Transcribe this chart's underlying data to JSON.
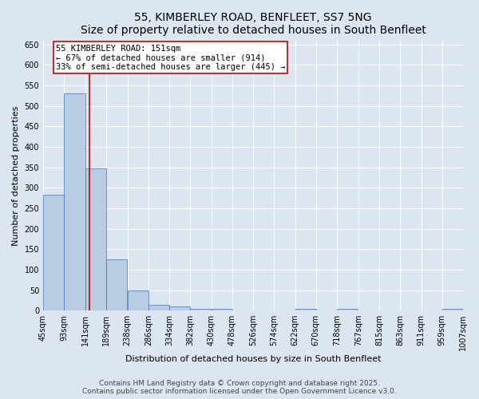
{
  "title_line1": "55, KIMBERLEY ROAD, BENFLEET, SS7 5NG",
  "title_line2": "Size of property relative to detached houses in South Benfleet",
  "xlabel": "Distribution of detached houses by size in South Benfleet",
  "ylabel": "Number of detached properties",
  "bin_labels": [
    "45sqm",
    "93sqm",
    "141sqm",
    "189sqm",
    "238sqm",
    "286sqm",
    "334sqm",
    "382sqm",
    "430sqm",
    "478sqm",
    "526sqm",
    "574sqm",
    "622sqm",
    "670sqm",
    "718sqm",
    "767sqm",
    "815sqm",
    "863sqm",
    "911sqm",
    "959sqm",
    "1007sqm"
  ],
  "bin_edges": [
    45,
    93,
    141,
    189,
    238,
    286,
    334,
    382,
    430,
    478,
    526,
    574,
    622,
    670,
    718,
    767,
    815,
    863,
    911,
    959,
    1007
  ],
  "bar_heights": [
    283,
    530,
    348,
    125,
    50,
    15,
    10,
    5,
    5,
    0,
    0,
    0,
    5,
    0,
    5,
    0,
    0,
    0,
    0,
    5
  ],
  "bar_color": "#b8cce4",
  "bar_edge_color": "#4472c4",
  "background_color": "#dce6f1",
  "grid_color": "#ffffff",
  "red_line_x": 151,
  "annotation_title": "55 KIMBERLEY ROAD: 151sqm",
  "annotation_line1": "← 67% of detached houses are smaller (914)",
  "annotation_line2": "33% of semi-detached houses are larger (445) →",
  "annotation_box_color": "#ffffff",
  "annotation_border_color": "#cc0000",
  "red_line_color": "#cc0000",
  "ylim": [
    0,
    660
  ],
  "yticks": [
    0,
    50,
    100,
    150,
    200,
    250,
    300,
    350,
    400,
    450,
    500,
    550,
    600,
    650
  ],
  "footer_line1": "Contains HM Land Registry data © Crown copyright and database right 2025.",
  "footer_line2": "Contains public sector information licensed under the Open Government Licence v3.0.",
  "title_fontsize": 10,
  "axis_label_fontsize": 8,
  "tick_fontsize": 7,
  "annotation_fontsize": 7.5,
  "footer_fontsize": 6.5
}
